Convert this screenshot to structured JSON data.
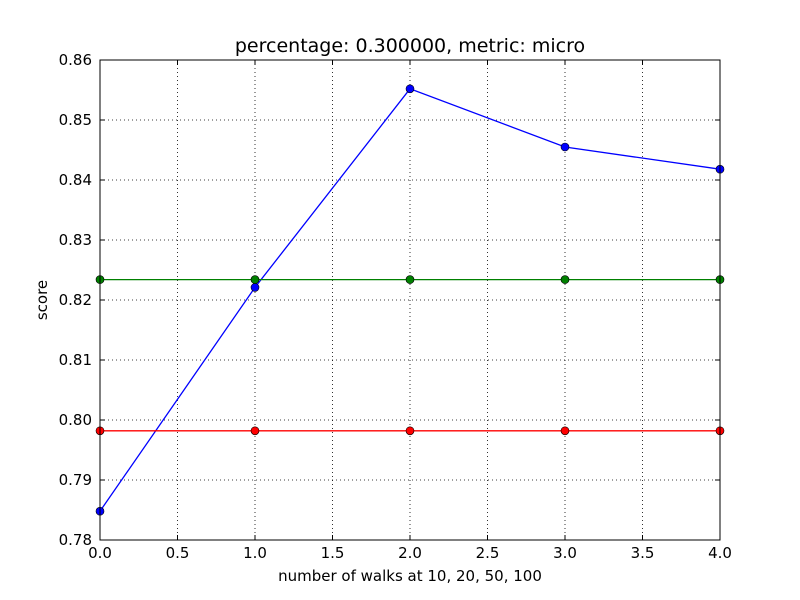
{
  "chart_data": {
    "type": "line",
    "title": "percentage: 0.300000, metric: micro",
    "xlabel": "number of walks at 10, 20, 50, 100",
    "ylabel": "score",
    "xlim": [
      0.0,
      4.0
    ],
    "ylim": [
      0.78,
      0.86
    ],
    "xticks": [
      "0.0",
      "0.5",
      "1.0",
      "1.5",
      "2.0",
      "2.5",
      "3.0",
      "3.5",
      "4.0"
    ],
    "yticks": [
      "0.78",
      "0.79",
      "0.80",
      "0.81",
      "0.82",
      "0.83",
      "0.84",
      "0.85",
      "0.86"
    ],
    "grid": true,
    "x": [
      0,
      1,
      2,
      3,
      4
    ],
    "series": [
      {
        "color": "#0000ff",
        "values": [
          0.7848,
          0.8221,
          0.8552,
          0.8455,
          0.8418
        ]
      },
      {
        "color": "#008000",
        "values": [
          0.8234,
          0.8234,
          0.8234,
          0.8234,
          0.8234
        ]
      },
      {
        "color": "#ff0000",
        "values": [
          0.7982,
          0.7982,
          0.7982,
          0.7982,
          0.7982
        ]
      }
    ]
  }
}
